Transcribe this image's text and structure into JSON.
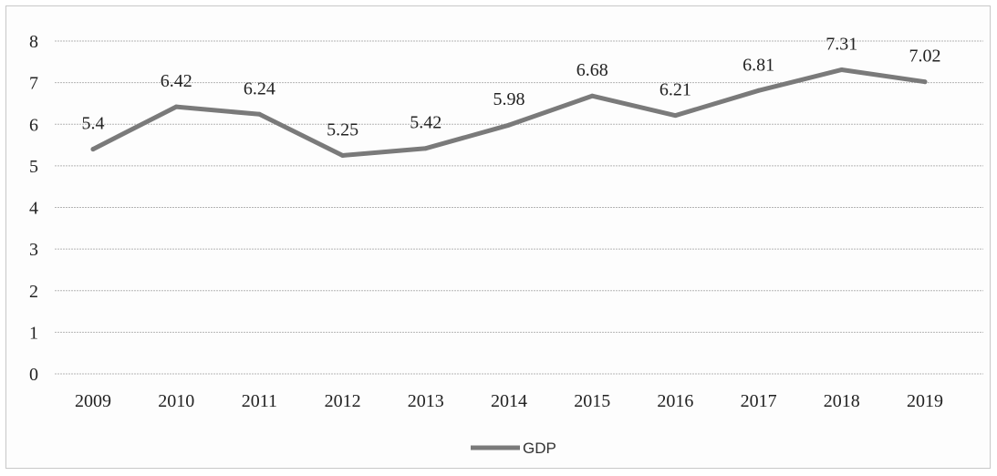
{
  "chart_data": {
    "type": "line",
    "title": "",
    "xlabel": "",
    "ylabel": "",
    "categories": [
      "2009",
      "2010",
      "2011",
      "2012",
      "2013",
      "2014",
      "2015",
      "2016",
      "2017",
      "2018",
      "2019"
    ],
    "series": [
      {
        "name": "GDP",
        "values": [
          5.4,
          6.42,
          6.24,
          5.25,
          5.42,
          5.98,
          6.68,
          6.21,
          6.81,
          7.31,
          7.02
        ],
        "data_labels": [
          "5.4",
          "6.42",
          "6.24",
          "5.25",
          "5.42",
          "5.98",
          "6.68",
          "6.21",
          "6.81",
          "7.31",
          "7.02"
        ]
      }
    ],
    "y_ticks": [
      "0",
      "1",
      "2",
      "3",
      "4",
      "5",
      "6",
      "7",
      "8"
    ],
    "ylim": [
      0,
      8
    ],
    "grid": true,
    "legend": "bottom-center",
    "colors": {
      "line": "#7a7a7a",
      "grid": "#b5b5b5"
    }
  }
}
